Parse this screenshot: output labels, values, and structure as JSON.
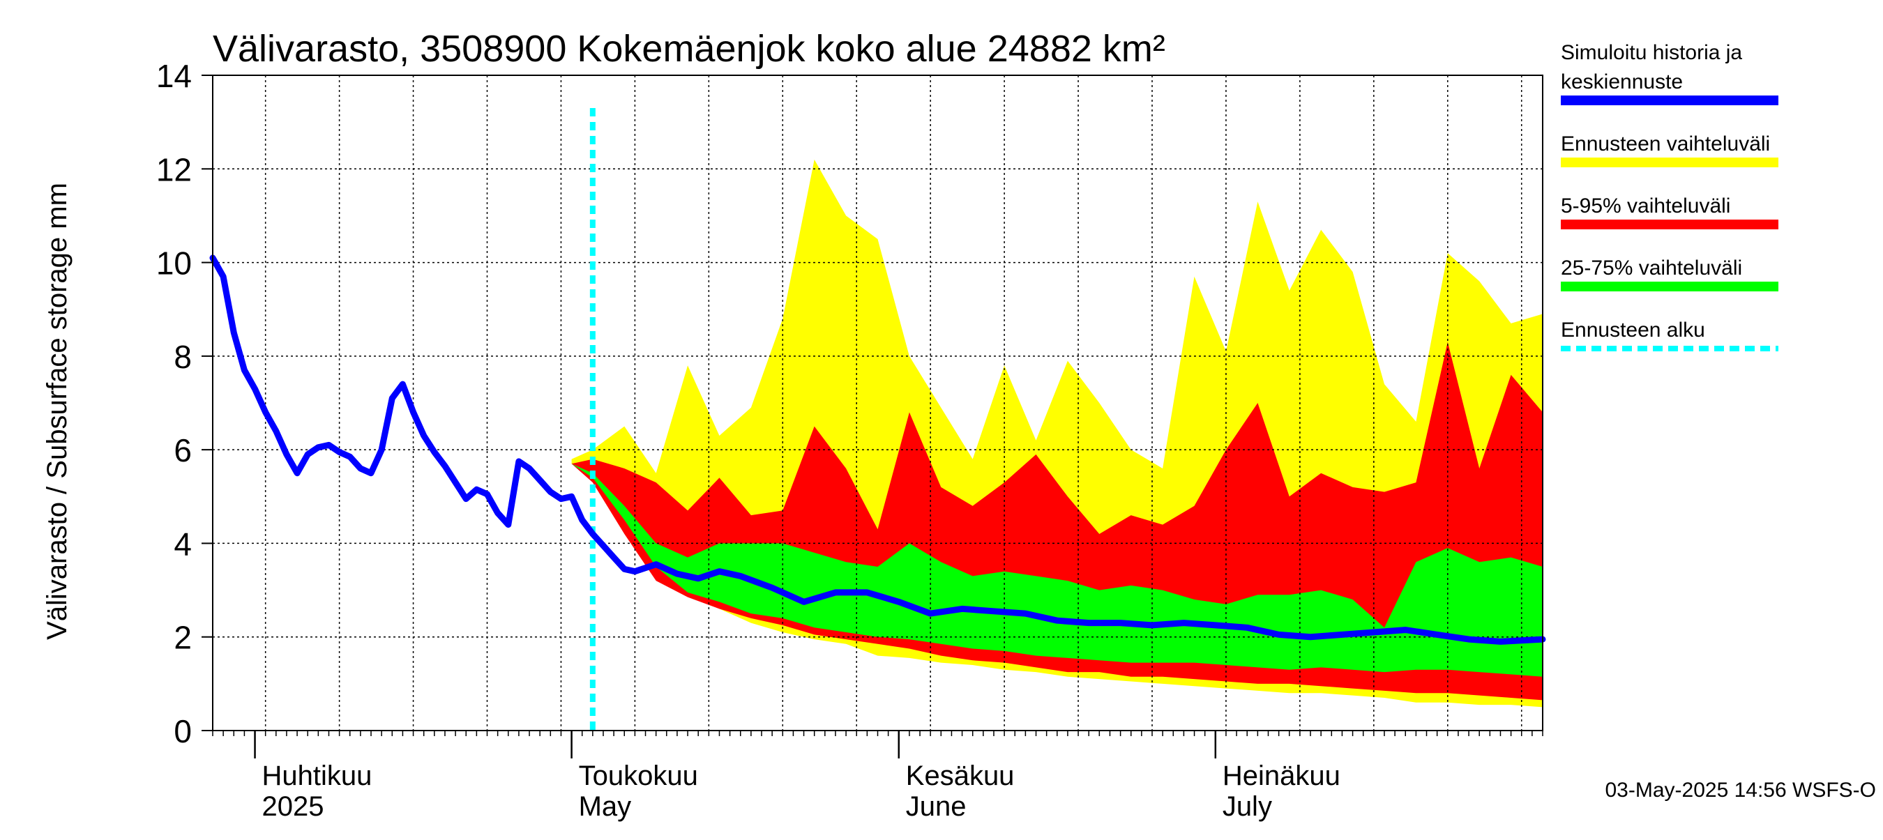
{
  "chart_data": {
    "type": "area",
    "title": "Välivarasto, 3508900 Kokemäenjok koko alue 24882 km²",
    "ylabel": "Välivarasto / Subsurface storage  mm",
    "xlabel": "",
    "ylim": [
      0,
      14
    ],
    "yticks": [
      0,
      2,
      4,
      6,
      8,
      10,
      12,
      14
    ],
    "grid": true,
    "legend_position": "right",
    "x_start": "2025-03-28",
    "x_end": "2025-08-01",
    "forecast_start": "2025-05-03",
    "month_labels": [
      {
        "date": "2025-04-01",
        "fi": "Huhtikuu",
        "en": "2025"
      },
      {
        "date": "2025-05-01",
        "fi": "Toukokuu",
        "en": "May"
      },
      {
        "date": "2025-06-01",
        "fi": "Kesäkuu",
        "en": "June"
      },
      {
        "date": "2025-07-01",
        "fi": "Heinäkuu",
        "en": "July"
      }
    ],
    "legend": [
      {
        "label": "Simuloitu historia ja keskiennuste",
        "lines": [
          "Simuloitu historia ja",
          "keskiennuste"
        ],
        "color": "#0000ff",
        "style": "solid"
      },
      {
        "label": "Ennusteen vaihteluväli",
        "lines": [
          "Ennusteen vaihteluväli"
        ],
        "color": "#ffff00",
        "style": "solid"
      },
      {
        "label": "5-95% vaihteluväli",
        "lines": [
          "5-95% vaihteluväli"
        ],
        "color": "#ff0000",
        "style": "solid"
      },
      {
        "label": "25-75% vaihteluväli",
        "lines": [
          "25-75% vaihteluväli"
        ],
        "color": "#00ff00",
        "style": "solid"
      },
      {
        "label": "Ennusteen alku",
        "lines": [
          "Ennusteen alku"
        ],
        "color": "#00ffff",
        "style": "dashed"
      }
    ],
    "colors": {
      "history": "#0000ff",
      "yellow": "#ffff00",
      "red": "#ff0000",
      "green": "#00ff00",
      "forecast_start": "#00ffff"
    },
    "footer": "03-May-2025 14:56 WSFS-O",
    "series": [
      {
        "name": "Simuloitu historia ja keskiennuste",
        "dates": [
          "2025-03-28",
          "2025-03-29",
          "2025-03-30",
          "2025-03-31",
          "2025-04-01",
          "2025-04-02",
          "2025-04-03",
          "2025-04-04",
          "2025-04-05",
          "2025-04-06",
          "2025-04-07",
          "2025-04-08",
          "2025-04-09",
          "2025-04-10",
          "2025-04-11",
          "2025-04-12",
          "2025-04-13",
          "2025-04-14",
          "2025-04-15",
          "2025-04-16",
          "2025-04-17",
          "2025-04-18",
          "2025-04-19",
          "2025-04-20",
          "2025-04-21",
          "2025-04-22",
          "2025-04-23",
          "2025-04-24",
          "2025-04-25",
          "2025-04-26",
          "2025-04-27",
          "2025-04-28",
          "2025-04-29",
          "2025-04-30",
          "2025-05-01",
          "2025-05-02",
          "2025-05-03",
          "2025-05-04",
          "2025-05-05",
          "2025-05-06",
          "2025-05-07",
          "2025-05-09",
          "2025-05-11",
          "2025-05-13",
          "2025-05-15",
          "2025-05-17",
          "2025-05-20",
          "2025-05-23",
          "2025-05-26",
          "2025-05-29",
          "2025-06-01",
          "2025-06-04",
          "2025-06-07",
          "2025-06-10",
          "2025-06-13",
          "2025-06-16",
          "2025-06-19",
          "2025-06-22",
          "2025-06-25",
          "2025-06-28",
          "2025-07-01",
          "2025-07-04",
          "2025-07-07",
          "2025-07-10",
          "2025-07-13",
          "2025-07-16",
          "2025-07-19",
          "2025-07-22",
          "2025-07-25",
          "2025-07-28",
          "2025-08-01"
        ],
        "values": [
          10.1,
          9.7,
          8.5,
          7.7,
          7.3,
          6.8,
          6.4,
          5.9,
          5.5,
          5.9,
          6.05,
          6.1,
          5.95,
          5.85,
          5.6,
          5.5,
          6.0,
          7.1,
          7.4,
          6.8,
          6.3,
          5.95,
          5.65,
          5.3,
          4.95,
          5.15,
          5.05,
          4.65,
          4.4,
          5.75,
          5.6,
          5.35,
          5.1,
          4.95,
          5.0,
          4.5,
          4.2,
          3.95,
          3.7,
          3.45,
          3.4,
          3.55,
          3.35,
          3.25,
          3.4,
          3.3,
          3.05,
          2.75,
          2.95,
          2.95,
          2.75,
          2.5,
          2.6,
          2.55,
          2.5,
          2.35,
          2.3,
          2.3,
          2.25,
          2.3,
          2.25,
          2.2,
          2.05,
          2.0,
          2.05,
          2.1,
          2.15,
          2.05,
          1.95,
          1.9,
          1.95
        ]
      }
    ],
    "bands": [
      {
        "name": "Ennusteen vaihteluväli",
        "dates": [
          "2025-05-01",
          "2025-05-03",
          "2025-05-06",
          "2025-05-09",
          "2025-05-12",
          "2025-05-15",
          "2025-05-18",
          "2025-05-21",
          "2025-05-24",
          "2025-05-27",
          "2025-05-30",
          "2025-06-02",
          "2025-06-05",
          "2025-06-08",
          "2025-06-11",
          "2025-06-14",
          "2025-06-17",
          "2025-06-20",
          "2025-06-23",
          "2025-06-26",
          "2025-06-29",
          "2025-07-02",
          "2025-07-05",
          "2025-07-08",
          "2025-07-11",
          "2025-07-14",
          "2025-07-17",
          "2025-07-20",
          "2025-07-23",
          "2025-07-26",
          "2025-07-29",
          "2025-08-01"
        ],
        "upper": [
          5.8,
          6.0,
          6.5,
          5.5,
          7.8,
          6.3,
          6.9,
          8.8,
          12.2,
          11.0,
          10.5,
          8.0,
          6.9,
          5.8,
          7.8,
          6.2,
          7.9,
          7.0,
          6.0,
          5.6,
          9.7,
          8.1,
          11.3,
          9.4,
          10.7,
          9.8,
          7.4,
          6.6,
          10.2,
          9.6,
          8.7,
          8.9
        ],
        "lower": [
          5.7,
          5.5,
          4.5,
          3.5,
          2.9,
          2.6,
          2.3,
          2.1,
          1.95,
          1.85,
          1.6,
          1.55,
          1.45,
          1.4,
          1.3,
          1.25,
          1.15,
          1.1,
          1.05,
          1.0,
          0.95,
          0.9,
          0.85,
          0.8,
          0.8,
          0.75,
          0.7,
          0.6,
          0.6,
          0.55,
          0.55,
          0.5
        ]
      },
      {
        "name": "5-95% vaihteluväli",
        "dates": [
          "2025-05-01",
          "2025-05-03",
          "2025-05-06",
          "2025-05-09",
          "2025-05-12",
          "2025-05-15",
          "2025-05-18",
          "2025-05-21",
          "2025-05-24",
          "2025-05-27",
          "2025-05-30",
          "2025-06-02",
          "2025-06-05",
          "2025-06-08",
          "2025-06-11",
          "2025-06-14",
          "2025-06-17",
          "2025-06-20",
          "2025-06-23",
          "2025-06-26",
          "2025-06-29",
          "2025-07-02",
          "2025-07-05",
          "2025-07-08",
          "2025-07-11",
          "2025-07-14",
          "2025-07-17",
          "2025-07-20",
          "2025-07-23",
          "2025-07-26",
          "2025-07-29",
          "2025-08-01"
        ],
        "upper": [
          5.7,
          5.8,
          5.6,
          5.3,
          4.7,
          5.4,
          4.6,
          4.7,
          6.5,
          5.6,
          4.3,
          6.8,
          5.2,
          4.8,
          5.3,
          5.9,
          5.0,
          4.2,
          4.6,
          4.4,
          4.8,
          6.0,
          7.0,
          5.0,
          5.5,
          5.2,
          5.1,
          5.3,
          8.3,
          5.6,
          7.6,
          6.8
        ],
        "lower": [
          5.7,
          5.3,
          4.2,
          3.2,
          2.85,
          2.6,
          2.4,
          2.25,
          2.05,
          1.95,
          1.85,
          1.75,
          1.6,
          1.5,
          1.45,
          1.35,
          1.25,
          1.25,
          1.15,
          1.15,
          1.1,
          1.05,
          1.0,
          1.0,
          0.95,
          0.9,
          0.85,
          0.8,
          0.8,
          0.75,
          0.7,
          0.65
        ]
      },
      {
        "name": "25-75% vaihteluväli",
        "dates": [
          "2025-05-01",
          "2025-05-03",
          "2025-05-06",
          "2025-05-09",
          "2025-05-12",
          "2025-05-15",
          "2025-05-18",
          "2025-05-21",
          "2025-05-24",
          "2025-05-27",
          "2025-05-30",
          "2025-06-02",
          "2025-06-05",
          "2025-06-08",
          "2025-06-11",
          "2025-06-14",
          "2025-06-17",
          "2025-06-20",
          "2025-06-23",
          "2025-06-26",
          "2025-06-29",
          "2025-07-02",
          "2025-07-05",
          "2025-07-08",
          "2025-07-11",
          "2025-07-14",
          "2025-07-17",
          "2025-07-20",
          "2025-07-23",
          "2025-07-26",
          "2025-07-29",
          "2025-08-01"
        ],
        "upper": [
          5.7,
          5.5,
          4.8,
          4.0,
          3.7,
          4.0,
          4.0,
          4.0,
          3.8,
          3.6,
          3.5,
          4.0,
          3.6,
          3.3,
          3.4,
          3.3,
          3.2,
          3.0,
          3.1,
          3.0,
          2.8,
          2.7,
          2.9,
          2.9,
          3.0,
          2.8,
          2.2,
          3.6,
          3.9,
          3.6,
          3.7,
          3.5
        ],
        "lower": [
          5.7,
          5.4,
          4.5,
          3.5,
          2.95,
          2.75,
          2.5,
          2.4,
          2.2,
          2.1,
          2.0,
          1.95,
          1.85,
          1.75,
          1.7,
          1.6,
          1.55,
          1.5,
          1.45,
          1.45,
          1.45,
          1.4,
          1.35,
          1.3,
          1.35,
          1.3,
          1.25,
          1.3,
          1.3,
          1.25,
          1.2,
          1.15
        ]
      }
    ]
  }
}
